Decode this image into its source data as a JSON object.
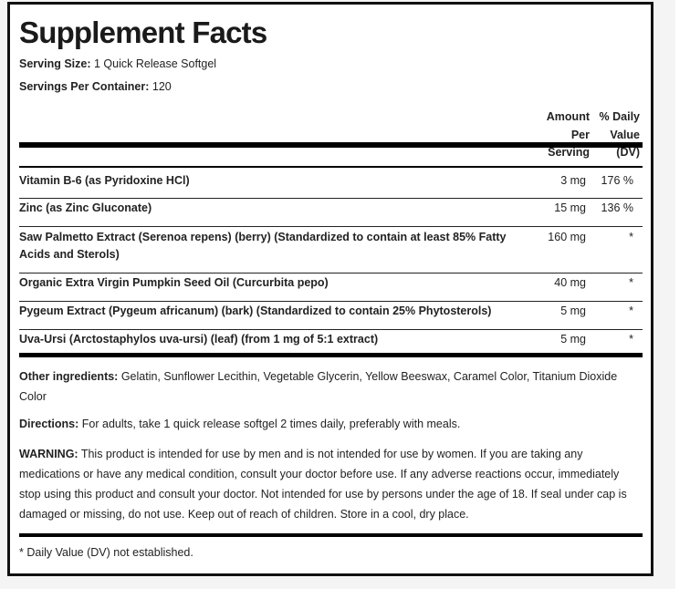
{
  "title": "Supplement Facts",
  "serving_size": {
    "label": "Serving Size:",
    "value": "1 Quick Release Softgel"
  },
  "servings_per_container": {
    "label": "Servings Per Container:",
    "value": "120"
  },
  "table": {
    "headers": {
      "amount": [
        "Amount",
        "Per",
        "Serving"
      ],
      "dv": [
        "% Daily",
        "Value",
        "(DV)"
      ]
    },
    "rows": [
      {
        "name": "Vitamin B-6 (as Pyridoxine HCl)",
        "amount": "3 mg",
        "dv": "176 %"
      },
      {
        "name": "Zinc (as Zinc Gluconate)",
        "amount": "15 mg",
        "dv": "136 %"
      },
      {
        "name": "Saw Palmetto Extract (Serenoa repens) (berry) (Standardized to contain at least 85% Fatty Acids and Sterols)",
        "amount": "160 mg",
        "dv": "*"
      },
      {
        "name": "Organic Extra Virgin Pumpkin Seed Oil (Curcurbita pepo)",
        "amount": "40 mg",
        "dv": "*"
      },
      {
        "name": "Pygeum Extract (Pygeum africanum) (bark) (Standardized to contain 25% Phytosterols)",
        "amount": "5 mg",
        "dv": "*"
      },
      {
        "name": "Uva-Ursi (Arctostaphylos uva-ursi) (leaf) (from 1 mg of 5:1 extract)",
        "amount": "5 mg",
        "dv": "*"
      }
    ]
  },
  "other_ingredients": {
    "label": "Other ingredients:",
    "text": "Gelatin, Sunflower Lecithin, Vegetable Glycerin, Yellow Beeswax, Caramel Color, Titanium Dioxide Color"
  },
  "directions": {
    "label": "Directions:",
    "text": "For adults, take 1 quick release softgel 2 times daily, preferably with meals."
  },
  "warning": {
    "label": "WARNING:",
    "text": "This product is intended for use by men and is not intended for use by women. If you are taking any medications or have any medical condition, consult your doctor before use. If any adverse reactions occur, immediately stop using this product and consult your doctor. Not intended for use by persons under the age of 18. If seal under cap is damaged or missing, do not use. Keep out of reach of children. Store in a cool, dry place."
  },
  "footnote": "* Daily Value (DV) not established."
}
